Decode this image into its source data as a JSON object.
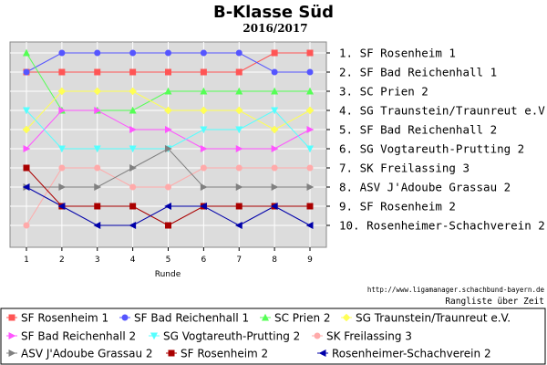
{
  "header": {
    "title": "B-Klasse Süd",
    "season": "2016/2017"
  },
  "footer": {
    "source_url": "http://www.ligamanager.schachbund-bayern.de",
    "caption": "Rangliste über Zeit"
  },
  "colors": {
    "plot_bg": "#dcdcdc",
    "grid": "#ffffff"
  },
  "chart_data": {
    "type": "line",
    "title": "B-Klasse Süd",
    "subtitle": "2016/2017",
    "xlabel": "Runde",
    "ylabel": "",
    "x": [
      1,
      2,
      3,
      4,
      5,
      6,
      7,
      8,
      9
    ],
    "xlim": [
      1,
      9
    ],
    "ylim": [
      1,
      10
    ],
    "y_inverted": true,
    "grid": true,
    "legend_position": "bottom",
    "rank_labels": [
      "1. SF Rosenheim 1",
      "2. SF Bad Reichenhall 1",
      "3. SC Prien 2",
      "4. SG Traunstein/Traunreut e.V.",
      "5. SF Bad Reichenhall 2",
      "6. SG Vogtareuth-Prutting 2",
      "7. SK Freilassing 3",
      "8. ASV J'Adoube Grassau 2",
      "9. SF Rosenheim 2",
      "10. Rosenheimer-Schachverein 2"
    ],
    "series": [
      {
        "name": "SF Rosenheim 1",
        "color": "#ff5555",
        "marker": "square",
        "values": [
          2,
          2,
          2,
          2,
          2,
          2,
          2,
          1,
          1
        ]
      },
      {
        "name": "SF Bad Reichenhall 1",
        "color": "#5555ff",
        "marker": "circle",
        "values": [
          2,
          1,
          1,
          1,
          1,
          1,
          1,
          2,
          2
        ]
      },
      {
        "name": "SC Prien 2",
        "color": "#55ff55",
        "marker": "triangle-up",
        "values": [
          1,
          4,
          4,
          4,
          3,
          3,
          3,
          3,
          3
        ]
      },
      {
        "name": "SG Traunstein/Traunreut e.V.",
        "color": "#ffff55",
        "marker": "diamond",
        "values": [
          5,
          3,
          3,
          3,
          4,
          4,
          4,
          5,
          4
        ]
      },
      {
        "name": "SF Bad Reichenhall 2",
        "color": "#ff55ff",
        "marker": "triangle-right",
        "values": [
          6,
          4,
          4,
          5,
          5,
          6,
          6,
          6,
          5
        ]
      },
      {
        "name": "SG Vogtareuth-Prutting 2",
        "color": "#55ffff",
        "marker": "triangle-down",
        "values": [
          4,
          6,
          6,
          6,
          6,
          5,
          5,
          4,
          6
        ]
      },
      {
        "name": "SK Freilassing 3",
        "color": "#ffaaaa",
        "marker": "circle",
        "values": [
          10,
          7,
          7,
          8,
          8,
          7,
          7,
          7,
          7
        ]
      },
      {
        "name": "ASV J'Adoube Grassau 2",
        "color": "#808080",
        "marker": "triangle-right",
        "values": [
          8,
          8,
          8,
          7,
          6,
          8,
          8,
          8,
          8
        ]
      },
      {
        "name": "SF Rosenheim 2",
        "color": "#aa0000",
        "marker": "square",
        "values": [
          7,
          9,
          9,
          9,
          10,
          9,
          9,
          9,
          9
        ]
      },
      {
        "name": "Rosenheimer-Schachverein 2",
        "color": "#0000aa",
        "marker": "triangle-left",
        "values": [
          8,
          9,
          10,
          10,
          9,
          9,
          10,
          9,
          10
        ]
      }
    ]
  }
}
